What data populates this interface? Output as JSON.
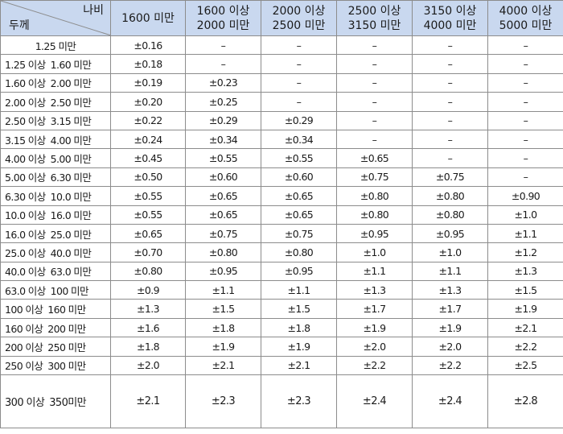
{
  "header": {
    "width_label": "나비",
    "thickness_label": "두께",
    "columns": [
      {
        "line1": "1600 미만",
        "line2": ""
      },
      {
        "line1": "1600 이상",
        "line2": "2000 미만"
      },
      {
        "line1": "2000 이상",
        "line2": "2500 미만"
      },
      {
        "line1": "2500 이상",
        "line2": "3150 미만"
      },
      {
        "line1": "3150 이상",
        "line2": "4000 미만"
      },
      {
        "line1": "4000 이상",
        "line2": "5000 미만"
      }
    ]
  },
  "rows": [
    {
      "from": "1.25 미만",
      "to": "",
      "values": [
        "±0.16",
        "–",
        "–",
        "–",
        "–",
        "–"
      ]
    },
    {
      "from": "1.25 이상",
      "to": "1.60 미만",
      "values": [
        "±0.18",
        "–",
        "–",
        "–",
        "–",
        "–"
      ]
    },
    {
      "from": "1.60 이상",
      "to": "2.00 미만",
      "values": [
        "±0.19",
        "±0.23",
        "–",
        "–",
        "–",
        "–"
      ]
    },
    {
      "from": "2.00 이상",
      "to": "2.50 미만",
      "values": [
        "±0.20",
        "±0.25",
        "–",
        "–",
        "–",
        "–"
      ]
    },
    {
      "from": "2.50 이상",
      "to": "3.15 미만",
      "values": [
        "±0.22",
        "±0.29",
        "±0.29",
        "–",
        "–",
        "–"
      ]
    },
    {
      "from": "3.15 이상",
      "to": "4.00 미만",
      "values": [
        "±0.24",
        "±0.34",
        "±0.34",
        "–",
        "–",
        "–"
      ]
    },
    {
      "from": "4.00 이상",
      "to": "5.00 미만",
      "values": [
        "±0.45",
        "±0.55",
        "±0.55",
        "±0.65",
        "–",
        "–"
      ]
    },
    {
      "from": "5.00 이상",
      "to": "6.30 미만",
      "values": [
        "±0.50",
        "±0.60",
        "±0.60",
        "±0.75",
        "±0.75",
        "–"
      ]
    },
    {
      "from": "6.30 이상",
      "to": "10.0 미만",
      "values": [
        "±0.55",
        "±0.65",
        "±0.65",
        "±0.80",
        "±0.80",
        "±0.90"
      ]
    },
    {
      "from": "10.0 이상",
      "to": "16.0 미만",
      "values": [
        "±0.55",
        "±0.65",
        "±0.65",
        "±0.80",
        "±0.80",
        "±1.0"
      ]
    },
    {
      "from": "16.0 이상",
      "to": "25.0 미만",
      "values": [
        "±0.65",
        "±0.75",
        "±0.75",
        "±0.95",
        "±0.95",
        "±1.1"
      ]
    },
    {
      "from": "25.0 이상",
      "to": "40.0 미만",
      "values": [
        "±0.70",
        "±0.80",
        "±0.80",
        "±1.0",
        "±1.0",
        "±1.2"
      ]
    },
    {
      "from": "40.0 이상",
      "to": "63.0 미만",
      "values": [
        "±0.80",
        "±0.95",
        "±0.95",
        "±1.1",
        "±1.1",
        "±1.3"
      ]
    },
    {
      "from": "63.0 이상",
      "to": "100 미만",
      "values": [
        "±0.9",
        "±1.1",
        "±1.1",
        "±1.3",
        "±1.3",
        "±1.5"
      ]
    },
    {
      "from": "100 이상",
      "to": "160 미만",
      "values": [
        "±1.3",
        "±1.5",
        "±1.5",
        "±1.7",
        "±1.7",
        "±1.9"
      ]
    },
    {
      "from": "160 이상",
      "to": "200 미만",
      "values": [
        "±1.6",
        "±1.8",
        "±1.8",
        "±1.9",
        "±1.9",
        "±2.1"
      ]
    },
    {
      "from": "200 이상",
      "to": "250 미만",
      "values": [
        "±1.8",
        "±1.9",
        "±1.9",
        "±2.0",
        "±2.0",
        "±2.2"
      ]
    },
    {
      "from": "250 이상",
      "to": "300 미만",
      "values": [
        "±2.0",
        "±2.1",
        "±2.1",
        "±2.2",
        "±2.2",
        "±2.5"
      ]
    },
    {
      "from": "300 이상",
      "to": "350미만",
      "values": [
        "±2.1",
        "±2.3",
        "±2.3",
        "±2.4",
        "±2.4",
        "±2.8"
      ]
    }
  ]
}
